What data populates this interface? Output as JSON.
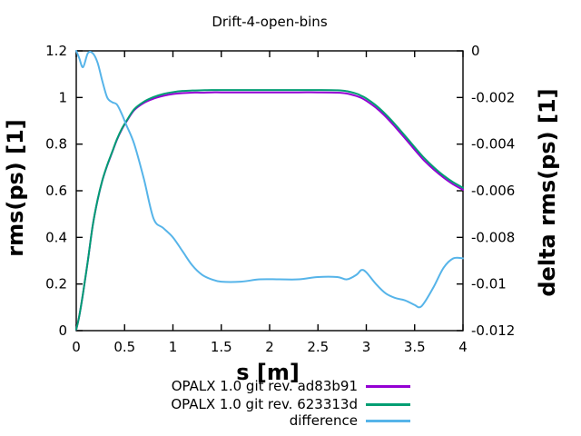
{
  "chart_data": {
    "type": "line",
    "title": "Drift-4-open-bins",
    "xlabel": "s [m]",
    "ylabel_left": "rms(ps) [1]",
    "ylabel_right": "delta rms(ps) [1]",
    "grid": false,
    "legend_position": "below plot, bottom-right",
    "x_range": [
      0,
      4
    ],
    "y_left_range": [
      0,
      1.2
    ],
    "y_right_range": [
      -0.012,
      0
    ],
    "x_ticks": {
      "values": [
        0,
        0.5,
        1,
        1.5,
        2,
        2.5,
        3,
        3.5,
        4
      ],
      "labels": [
        "0",
        "0.5",
        "1",
        "1.5",
        "2",
        "2.5",
        "3",
        "3.5",
        "4"
      ]
    },
    "y_left_ticks": {
      "values": [
        0,
        0.2,
        0.4,
        0.6,
        0.8,
        1,
        1.2
      ],
      "labels": [
        "0",
        "0.2",
        "0.4",
        "0.6",
        "0.8",
        "1",
        "1.2"
      ]
    },
    "y_right_ticks": {
      "values": [
        0,
        -0.002,
        -0.004,
        -0.006,
        -0.008,
        -0.01,
        -0.012
      ],
      "labels": [
        "0",
        "-0.002",
        "-0.004",
        "-0.006",
        "-0.008",
        "-0.01",
        "-0.012"
      ]
    },
    "x": [
      0,
      0.03,
      0.07,
      0.12,
      0.17,
      0.22,
      0.27,
      0.32,
      0.37,
      0.42,
      0.47,
      0.52,
      0.6,
      0.7,
      0.8,
      0.9,
      1.0,
      1.1,
      1.2,
      1.3,
      1.4,
      1.5,
      1.7,
      1.9,
      2.1,
      2.3,
      2.5,
      2.7,
      2.8,
      2.9,
      2.95,
      3.0,
      3.1,
      3.2,
      3.3,
      3.4,
      3.5,
      3.55,
      3.6,
      3.7,
      3.8,
      3.9,
      4.0
    ],
    "series": [
      {
        "name": "OPALX 1.0 git rev. ad83b91",
        "color": "#9400d3",
        "axis": "left",
        "values": [
          0.005,
          0.06,
          0.159,
          0.3,
          0.45,
          0.559,
          0.644,
          0.708,
          0.763,
          0.818,
          0.862,
          0.897,
          0.946,
          0.977,
          0.995,
          1.007,
          1.015,
          1.019,
          1.021,
          1.021,
          1.022,
          1.022,
          1.022,
          1.022,
          1.022,
          1.022,
          1.022,
          1.021,
          1.017,
          1.006,
          0.998,
          0.986,
          0.956,
          0.918,
          0.873,
          0.825,
          0.776,
          0.752,
          0.729,
          0.69,
          0.656,
          0.627,
          0.604
        ]
      },
      {
        "name": "OPALX 1.0 git rev. 623313d",
        "color": "#009e73",
        "axis": "left",
        "values": [
          0.005,
          0.06,
          0.16,
          0.3,
          0.45,
          0.56,
          0.645,
          0.71,
          0.765,
          0.82,
          0.865,
          0.9,
          0.95,
          0.982,
          1.002,
          1.015,
          1.023,
          1.028,
          1.03,
          1.031,
          1.032,
          1.032,
          1.032,
          1.032,
          1.032,
          1.032,
          1.032,
          1.031,
          1.027,
          1.016,
          1.007,
          0.996,
          0.966,
          0.928,
          0.884,
          0.836,
          0.787,
          0.763,
          0.74,
          0.7,
          0.665,
          0.636,
          0.613
        ]
      },
      {
        "name": "difference",
        "color": "#56b4e9",
        "axis": "right",
        "values": [
          0.0,
          -0.0003,
          -0.0007,
          -0.0001,
          -0.0001,
          -0.0005,
          -0.0013,
          -0.002,
          -0.0022,
          -0.0023,
          -0.0027,
          -0.0032,
          -0.004,
          -0.0055,
          -0.0072,
          -0.0076,
          -0.008,
          -0.0086,
          -0.0092,
          -0.0096,
          -0.0098,
          -0.0099,
          -0.0099,
          -0.0098,
          -0.0098,
          -0.0098,
          -0.0097,
          -0.0097,
          -0.0098,
          -0.0096,
          -0.0094,
          -0.0095,
          -0.01,
          -0.0104,
          -0.0106,
          -0.0107,
          -0.0109,
          -0.011,
          -0.0108,
          -0.0101,
          -0.0093,
          -0.0089,
          -0.0089
        ]
      }
    ]
  }
}
